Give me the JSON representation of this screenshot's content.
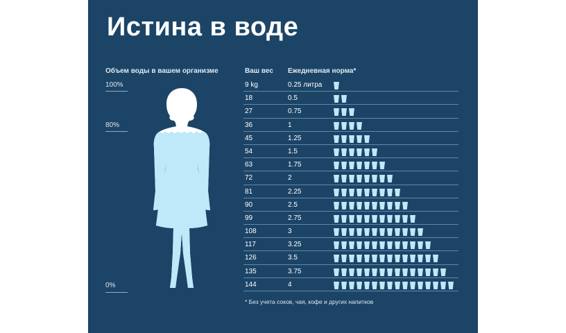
{
  "title": "Истина в воде",
  "left_heading": "Объем воды в вашем организме",
  "percent_labels": {
    "top": "100%",
    "mid": "80%",
    "bottom": "0%"
  },
  "body_water_fill_percent": 80,
  "colors": {
    "background": "#1c4467",
    "water": "#bfe8f8",
    "silhouette": "#ffffff",
    "cup": "#bfe8f8"
  },
  "icons": {
    "figure": "woman-silhouette-icon",
    "cup": "water-glass-icon"
  },
  "footnote": "* Без учета соков, чая, кофе и других напитков",
  "chart_data": {
    "type": "table",
    "columns": [
      "Ваш вес",
      "Ежедневная норма*"
    ],
    "rows": [
      {
        "weight": "9 kg",
        "liters": "0.25 литра",
        "glasses": 1
      },
      {
        "weight": "18",
        "liters": "0.5",
        "glasses": 2
      },
      {
        "weight": "27",
        "liters": "0.75",
        "glasses": 3
      },
      {
        "weight": "36",
        "liters": "1",
        "glasses": 4
      },
      {
        "weight": "45",
        "liters": "1.25",
        "glasses": 5
      },
      {
        "weight": "54",
        "liters": "1.5",
        "glasses": 6
      },
      {
        "weight": "63",
        "liters": "1.75",
        "glasses": 7
      },
      {
        "weight": "72",
        "liters": "2",
        "glasses": 8
      },
      {
        "weight": "81",
        "liters": "2.25",
        "glasses": 9
      },
      {
        "weight": "90",
        "liters": "2.5",
        "glasses": 10
      },
      {
        "weight": "99",
        "liters": "2.75",
        "glasses": 11
      },
      {
        "weight": "108",
        "liters": "3",
        "glasses": 12
      },
      {
        "weight": "117",
        "liters": "3.25",
        "glasses": 13
      },
      {
        "weight": "126",
        "liters": "3.5",
        "glasses": 14
      },
      {
        "weight": "135",
        "liters": "3.75",
        "glasses": 15
      },
      {
        "weight": "144",
        "liters": "4",
        "glasses": 16
      }
    ]
  }
}
